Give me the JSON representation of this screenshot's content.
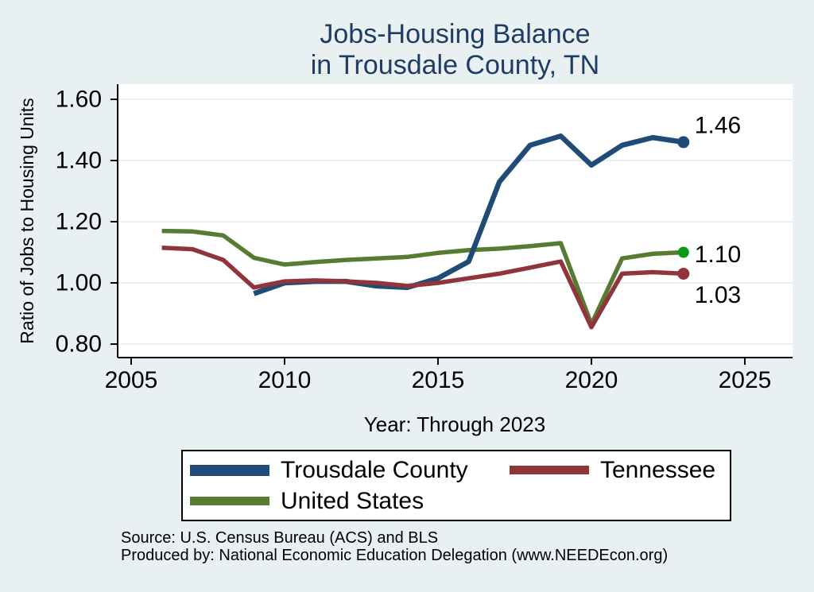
{
  "page": {
    "background": "#e8f0f2",
    "title_line1": "Jobs-Housing Balance",
    "title_line2": "in Trousdale County, TN",
    "title_color": "#1e3c64",
    "source_line1": "Source: U.S. Census Bureau (ACS) and BLS",
    "source_line2": "Produced by: National Economic Education Delegation (www.NEEDEcon.org)"
  },
  "chart_data": {
    "type": "line",
    "title": "Jobs-Housing Balance in Trousdale County, TN",
    "xlabel": "Year: Through 2023",
    "ylabel": "Ratio of Jobs to Housing Units",
    "xlim": [
      2004.5,
      2026.8
    ],
    "ylim": [
      0.755,
      1.648
    ],
    "x_ticks": [
      {
        "v": 2005,
        "label": "2005"
      },
      {
        "v": 2010,
        "label": "2010"
      },
      {
        "v": 2015,
        "label": "2015"
      },
      {
        "v": 2020,
        "label": "2020"
      },
      {
        "v": 2025,
        "label": "2025"
      }
    ],
    "y_ticks": [
      {
        "v": 0.8,
        "label": "0.80"
      },
      {
        "v": 1.0,
        "label": "1.00"
      },
      {
        "v": 1.2,
        "label": "1.20"
      },
      {
        "v": 1.4,
        "label": "1.40"
      },
      {
        "v": 1.6,
        "label": "1.60"
      }
    ],
    "grid": "horizontal",
    "gridline_color": "#e1ecef",
    "legend_position": "bottom",
    "series": [
      {
        "name": "Trousdale County",
        "color": "#1f4c77",
        "marker_color": "#1f4c77",
        "end_label": "1.46",
        "x": [
          2009,
          2010,
          2011,
          2012,
          2013,
          2014,
          2015,
          2016,
          2017,
          2018,
          2019,
          2020,
          2021,
          2022,
          2023
        ],
        "y": [
          0.965,
          1.0,
          1.005,
          1.005,
          0.99,
          0.985,
          1.015,
          1.07,
          1.33,
          1.45,
          1.48,
          1.385,
          1.45,
          1.475,
          1.46
        ]
      },
      {
        "name": "Tennessee",
        "color": "#90353b",
        "marker_color": "#90353b",
        "end_label": "1.03",
        "x": [
          2006,
          2007,
          2008,
          2009,
          2010,
          2011,
          2012,
          2013,
          2014,
          2015,
          2016,
          2017,
          2018,
          2019,
          2020,
          2021,
          2022,
          2023
        ],
        "y": [
          1.115,
          1.11,
          1.075,
          0.985,
          1.005,
          1.008,
          1.005,
          1.0,
          0.99,
          1.0,
          1.015,
          1.03,
          1.05,
          1.07,
          0.855,
          1.03,
          1.035,
          1.03
        ]
      },
      {
        "name": "United States",
        "color": "#577b30",
        "marker_color": "#0d9b13",
        "end_label": "1.10",
        "x": [
          2006,
          2007,
          2008,
          2009,
          2010,
          2011,
          2012,
          2013,
          2014,
          2015,
          2016,
          2017,
          2018,
          2019,
          2020,
          2021,
          2022,
          2023
        ],
        "y": [
          1.17,
          1.168,
          1.155,
          1.082,
          1.06,
          1.068,
          1.075,
          1.08,
          1.085,
          1.098,
          1.107,
          1.112,
          1.12,
          1.13,
          0.865,
          1.08,
          1.095,
          1.1
        ]
      }
    ]
  }
}
